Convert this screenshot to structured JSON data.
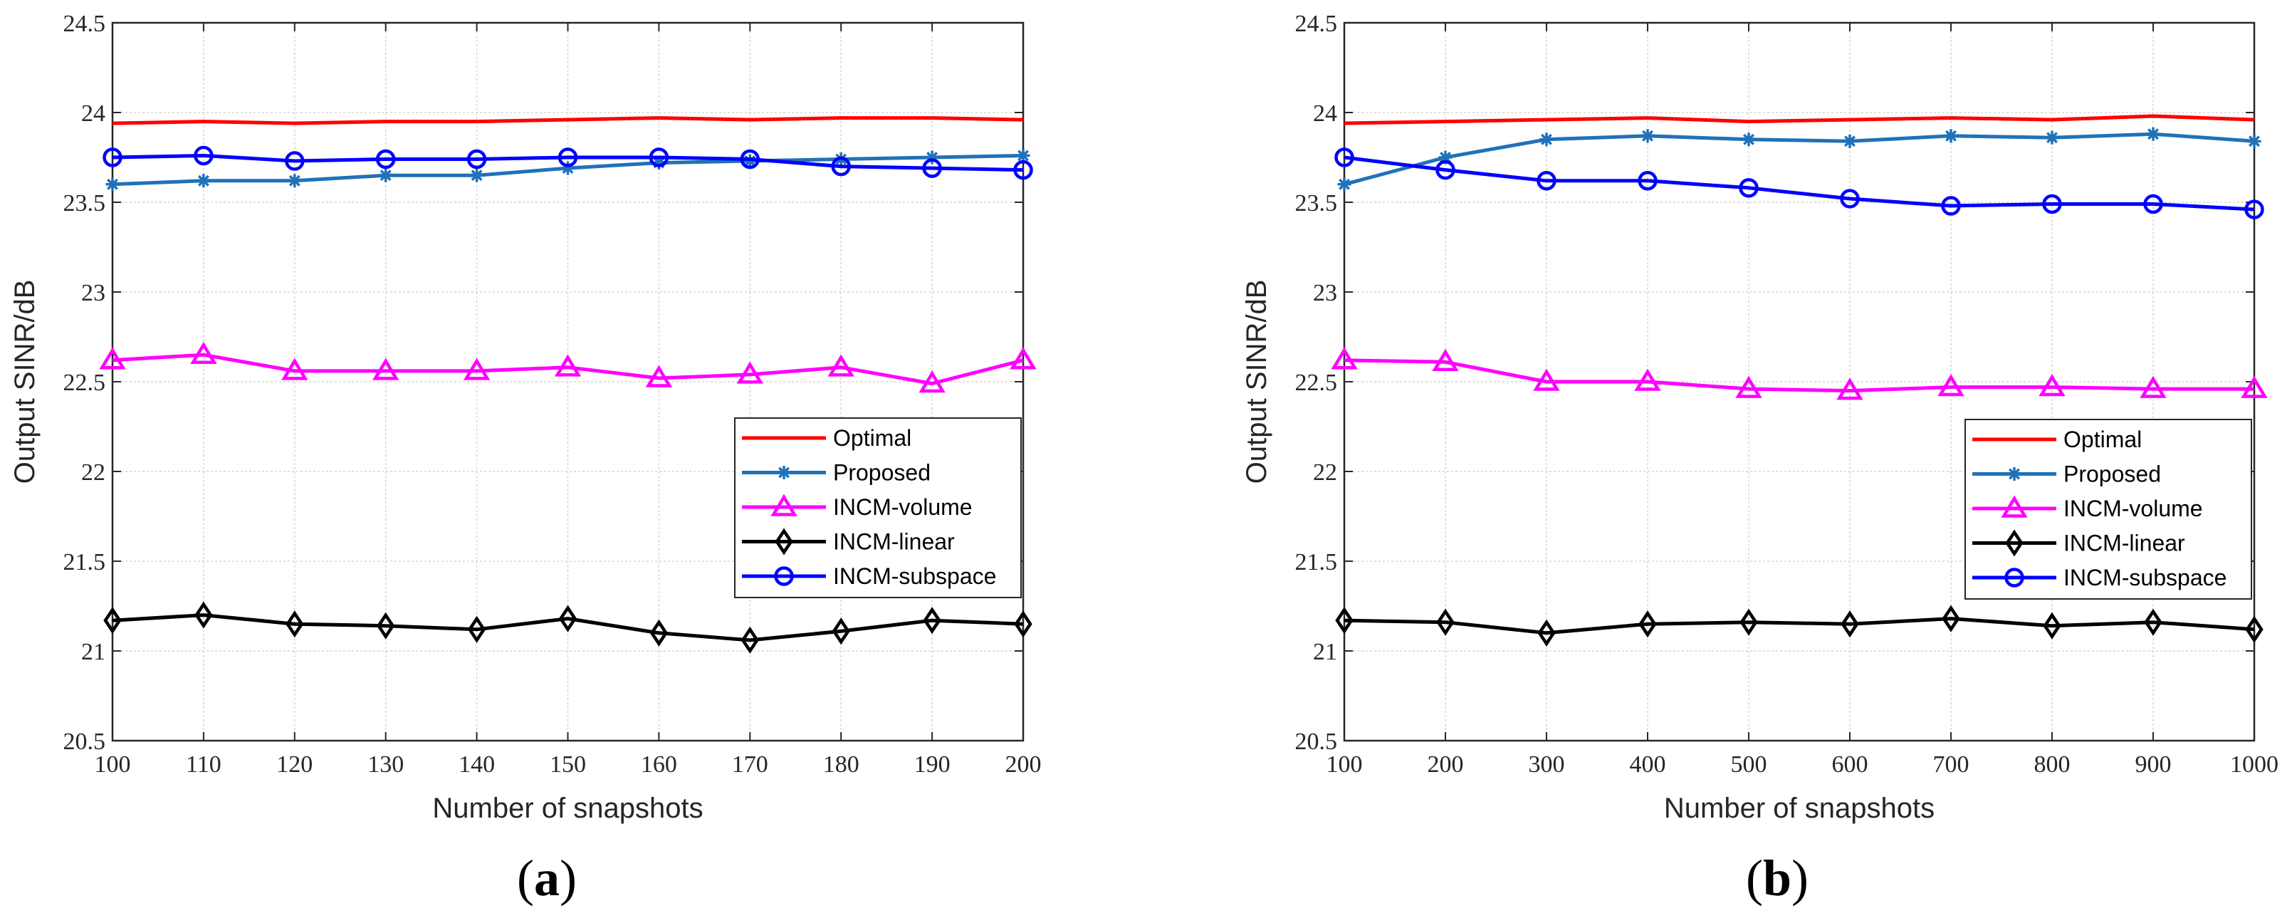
{
  "chart_data": [
    {
      "type": "line",
      "caption": {
        "open": "(",
        "letter": "a",
        "close": ")"
      },
      "xlabel": "Number of snapshots",
      "ylabel": "Output SINR/dB",
      "xlim": [
        100,
        200
      ],
      "ylim": [
        20.5,
        24.5
      ],
      "grid": true,
      "legend_position": "lower-right",
      "x": [
        100,
        110,
        120,
        130,
        140,
        150,
        160,
        170,
        180,
        190,
        200
      ],
      "xticks": [
        "100",
        "110",
        "120",
        "130",
        "140",
        "150",
        "160",
        "170",
        "180",
        "190",
        "200"
      ],
      "yticks": [
        "20.5",
        "21",
        "21.5",
        "22",
        "22.5",
        "23",
        "23.5",
        "24",
        "24.5"
      ],
      "series": [
        {
          "name": "Optimal",
          "color": "#ff0000",
          "marker": "none",
          "values": [
            23.94,
            23.95,
            23.94,
            23.95,
            23.95,
            23.96,
            23.97,
            23.96,
            23.97,
            23.97,
            23.96
          ]
        },
        {
          "name": "Proposed",
          "color": "#1f72b8",
          "marker": "star",
          "values": [
            23.6,
            23.62,
            23.62,
            23.65,
            23.65,
            23.69,
            23.72,
            23.73,
            23.74,
            23.75,
            23.76
          ]
        },
        {
          "name": "INCM-volume",
          "color": "#ff00ff",
          "marker": "triangle",
          "values": [
            22.62,
            22.65,
            22.56,
            22.56,
            22.56,
            22.58,
            22.52,
            22.54,
            22.58,
            22.49,
            22.62
          ]
        },
        {
          "name": "INCM-linear",
          "color": "#000000",
          "marker": "diamond",
          "values": [
            21.17,
            21.2,
            21.15,
            21.14,
            21.12,
            21.18,
            21.1,
            21.06,
            21.11,
            21.17,
            21.15
          ]
        },
        {
          "name": "INCM-subspace",
          "color": "#0000ff",
          "marker": "circle",
          "values": [
            23.75,
            23.76,
            23.73,
            23.74,
            23.74,
            23.75,
            23.75,
            23.74,
            23.7,
            23.69,
            23.68
          ]
        }
      ]
    },
    {
      "type": "line",
      "caption": {
        "open": "(",
        "letter": "b",
        "close": ")"
      },
      "xlabel": "Number of snapshots",
      "ylabel": "Output SINR/dB",
      "xlim": [
        100,
        1000
      ],
      "ylim": [
        20.5,
        24.5
      ],
      "grid": true,
      "legend_position": "lower-right",
      "x": [
        100,
        200,
        300,
        400,
        500,
        600,
        700,
        800,
        900,
        1000
      ],
      "xticks": [
        "100",
        "200",
        "300",
        "400",
        "500",
        "600",
        "700",
        "800",
        "900",
        "1000"
      ],
      "yticks": [
        "20.5",
        "21",
        "21.5",
        "22",
        "22.5",
        "23",
        "23.5",
        "24",
        "24.5"
      ],
      "series": [
        {
          "name": "Optimal",
          "color": "#ff0000",
          "marker": "none",
          "values": [
            23.94,
            23.95,
            23.96,
            23.97,
            23.95,
            23.96,
            23.97,
            23.96,
            23.98,
            23.96
          ]
        },
        {
          "name": "Proposed",
          "color": "#1f72b8",
          "marker": "star",
          "values": [
            23.6,
            23.75,
            23.85,
            23.87,
            23.85,
            23.84,
            23.87,
            23.86,
            23.88,
            23.84
          ]
        },
        {
          "name": "INCM-volume",
          "color": "#ff00ff",
          "marker": "triangle",
          "values": [
            22.62,
            22.61,
            22.5,
            22.5,
            22.46,
            22.45,
            22.47,
            22.47,
            22.46,
            22.46
          ]
        },
        {
          "name": "INCM-linear",
          "color": "#000000",
          "marker": "diamond",
          "values": [
            21.17,
            21.16,
            21.1,
            21.15,
            21.16,
            21.15,
            21.18,
            21.14,
            21.16,
            21.12
          ]
        },
        {
          "name": "INCM-subspace",
          "color": "#0000ff",
          "marker": "circle",
          "values": [
            23.75,
            23.68,
            23.62,
            23.62,
            23.58,
            23.52,
            23.48,
            23.49,
            23.49,
            23.46
          ]
        }
      ]
    }
  ]
}
